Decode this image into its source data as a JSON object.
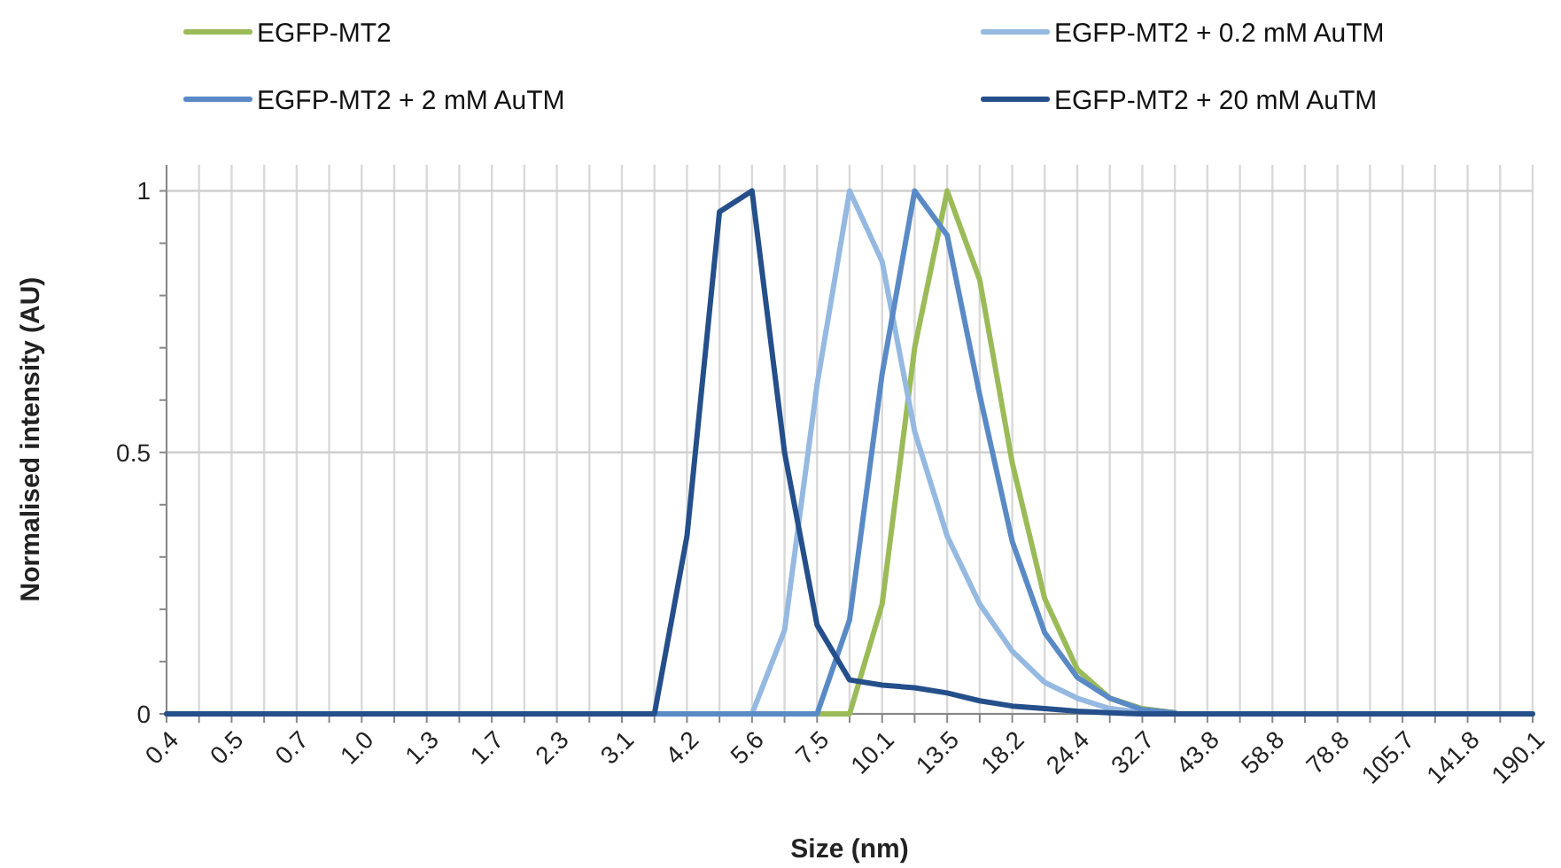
{
  "chart_data": {
    "type": "line",
    "xlabel": "Size (nm)",
    "ylabel": "Normalised intensity (AU)",
    "categories": [
      "0.4",
      null,
      "0.5",
      null,
      "0.7",
      null,
      "1.0",
      null,
      "1.3",
      null,
      "1.7",
      null,
      "2.3",
      null,
      "3.1",
      null,
      "4.2",
      null,
      "5.6",
      null,
      "7.5",
      null,
      "10.1",
      null,
      "13.5",
      null,
      "18.2",
      null,
      "24.4",
      null,
      "32.7",
      null,
      "43.8",
      null,
      "58.8",
      null,
      "78.8",
      null,
      "105.7",
      null,
      "141.8",
      null,
      "190.1"
    ],
    "series": [
      {
        "name": "EGFP-MT2",
        "color": "#9bbb59",
        "values": [
          null,
          null,
          null,
          null,
          null,
          null,
          null,
          null,
          null,
          null,
          null,
          null,
          null,
          null,
          null,
          null,
          null,
          null,
          null,
          null,
          0,
          0,
          0.21,
          0.7,
          1,
          0.83,
          0.48,
          0.22,
          0.085,
          0.03,
          0.01,
          0.002,
          null,
          null,
          null,
          null,
          null,
          null,
          null,
          null,
          null,
          null,
          null
        ]
      },
      {
        "name": "EGFP-MT2 + 0.2 mM AuTM",
        "color": "#95b9e1",
        "values": [
          null,
          null,
          null,
          null,
          null,
          null,
          null,
          null,
          null,
          null,
          null,
          null,
          null,
          null,
          null,
          null,
          null,
          null,
          0,
          0.16,
          0.63,
          1,
          0.865,
          0.54,
          0.34,
          0.21,
          0.12,
          0.06,
          0.03,
          0.01,
          0.003,
          null,
          null,
          null,
          null,
          null,
          null,
          null,
          null,
          null,
          null,
          null,
          null
        ]
      },
      {
        "name": "EGFP-MT2 + 2 mM AuTM",
        "color": "#5a8ac6",
        "values": [
          null,
          null,
          null,
          null,
          null,
          null,
          null,
          null,
          null,
          null,
          null,
          null,
          null,
          null,
          null,
          0,
          0,
          0,
          0,
          0,
          0,
          0.18,
          0.65,
          1,
          0.915,
          0.61,
          0.33,
          0.155,
          0.07,
          0.03,
          0.008,
          0.002,
          null,
          null,
          null,
          null,
          null,
          null,
          null,
          null,
          null,
          null,
          null
        ]
      },
      {
        "name": "EGFP-MT2 + 20 mM AuTM",
        "color": "#254f8a",
        "values": [
          0,
          0,
          0,
          0,
          0,
          0,
          0,
          0,
          0,
          0,
          0,
          0,
          0,
          0,
          0,
          0,
          0.34,
          0.96,
          1,
          0.5,
          0.17,
          0.065,
          0.055,
          0.05,
          0.04,
          0.025,
          0.015,
          0.01,
          0.005,
          0.002,
          0,
          0,
          0,
          0,
          0,
          0,
          0,
          0,
          0,
          0,
          0,
          0,
          0
        ]
      }
    ],
    "ylim": [
      0,
      1.05
    ],
    "yticks": [
      0,
      {
        "value": 0.1,
        "label": null
      },
      {
        "value": 0.2,
        "label": null
      },
      {
        "value": 0.3,
        "label": null
      },
      {
        "value": 0.4,
        "label": null
      },
      0.5,
      {
        "value": 0.6,
        "label": null
      },
      {
        "value": 0.7,
        "label": null
      },
      {
        "value": 0.8,
        "label": null
      },
      {
        "value": 0.9,
        "label": null
      },
      1
    ],
    "grid": true,
    "legend": "top",
    "marker": "none",
    "line_style": "solid"
  }
}
